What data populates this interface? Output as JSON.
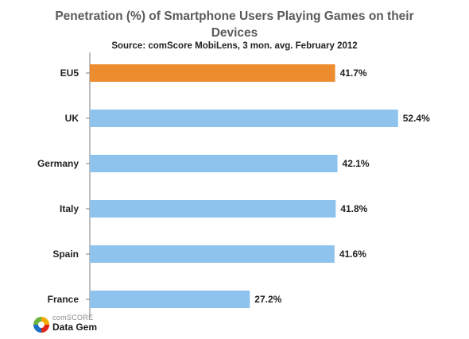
{
  "chart_data": {
    "type": "bar",
    "orientation": "horizontal",
    "title": "Penetration (%) of Smartphone Users Playing Games on their Devices",
    "subtitle": "Source: comScore MobiLens, 3 mon. avg. February 2012",
    "categories": [
      "EU5",
      "UK",
      "Germany",
      "Italy",
      "Spain",
      "France"
    ],
    "values": [
      41.7,
      52.4,
      42.1,
      41.8,
      41.6,
      27.2
    ],
    "value_labels": [
      "41.7%",
      "52.4%",
      "42.1%",
      "41.8%",
      "41.6%",
      "27.2%"
    ],
    "highlight_category": "EU5",
    "colors": {
      "highlight": "#ED8C2E",
      "default": "#8EC3EE",
      "axis": "#7f7f7f"
    },
    "xlim": [
      0,
      55
    ],
    "grid": false,
    "legend": "none"
  },
  "branding": {
    "company": "comSCORE",
    "product": "Data Gem"
  }
}
